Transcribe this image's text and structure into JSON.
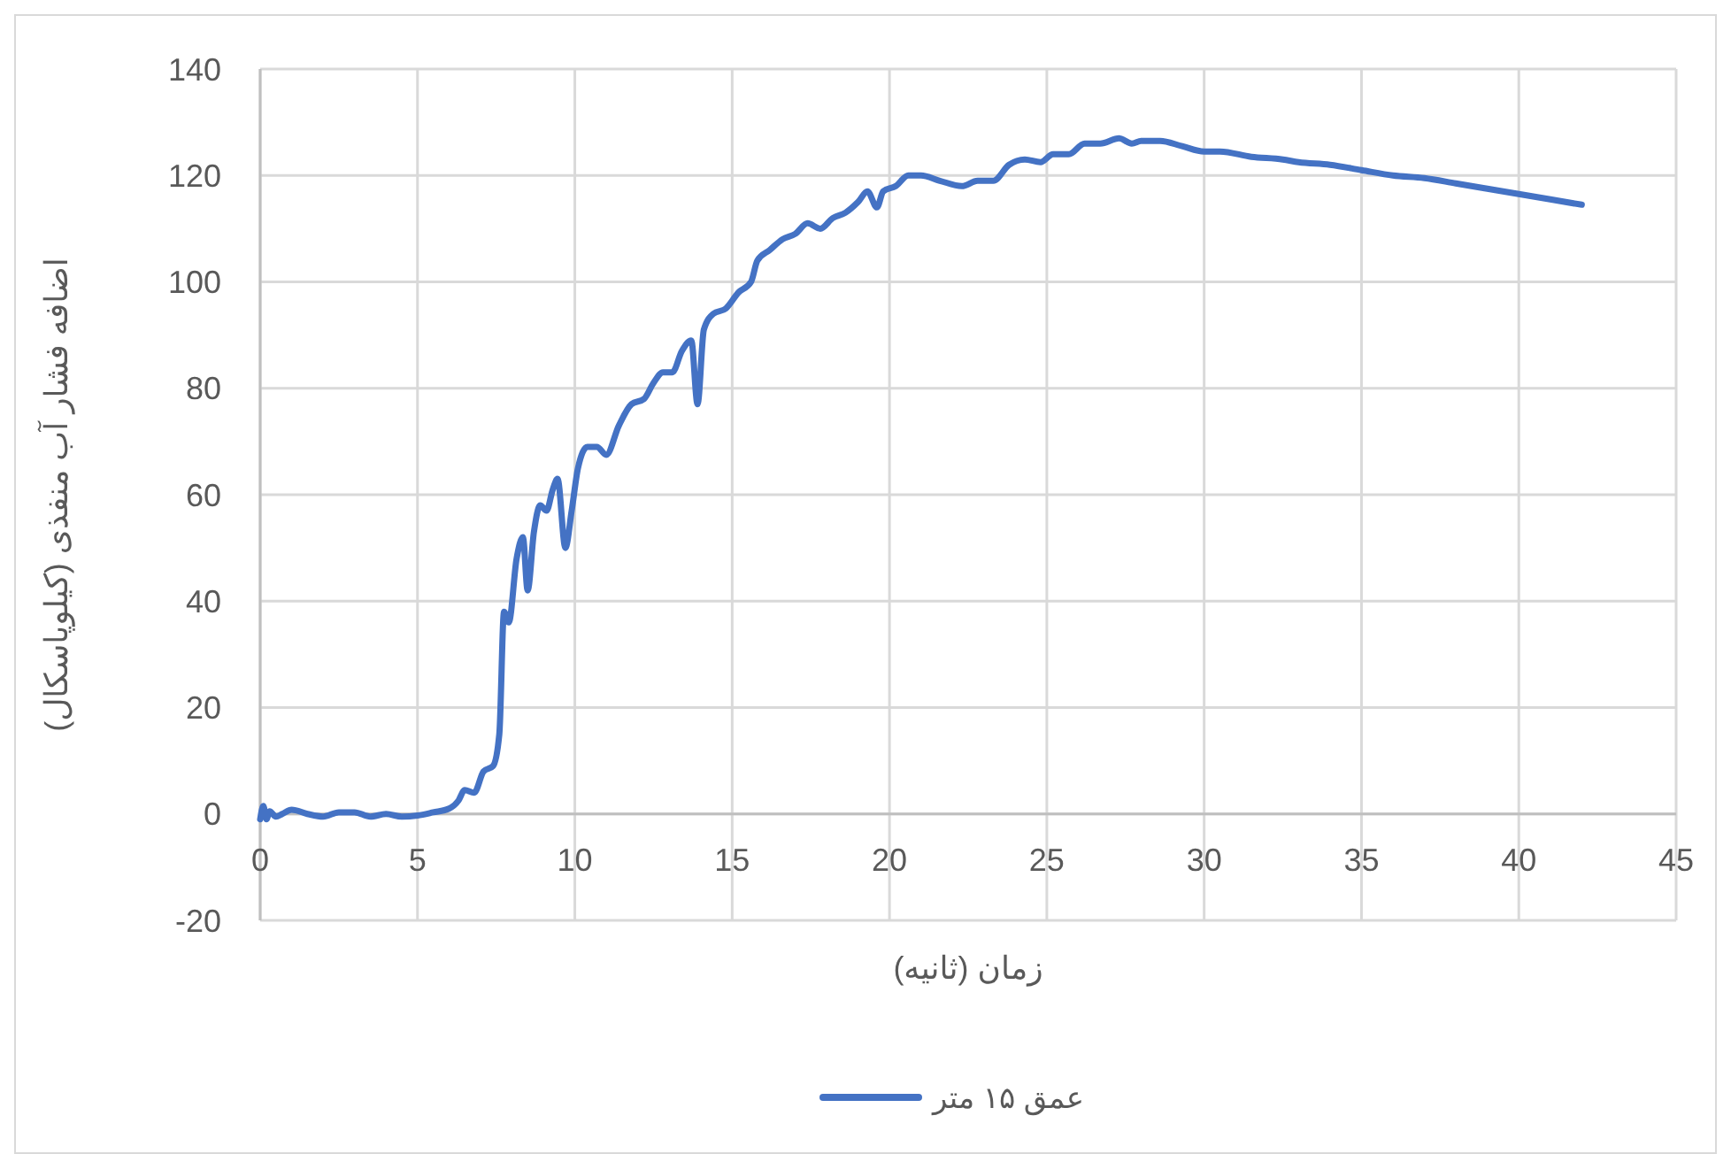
{
  "chart_data": {
    "type": "line",
    "xlabel": "زمان (ثانیه)",
    "ylabel": "اضافه فشار آب منفذی (کیلوپاسکال)",
    "xlim": [
      0,
      45
    ],
    "xticks": [
      0,
      5,
      10,
      15,
      20,
      25,
      30,
      35,
      40,
      45
    ],
    "ylim": [
      -20,
      140
    ],
    "yticks": [
      -20,
      0,
      20,
      40,
      60,
      80,
      100,
      120,
      140
    ],
    "grid": true,
    "legend": "bottom",
    "marker": "none",
    "line_style": "solid",
    "series": [
      {
        "name": "عمق ۱۵ متر",
        "color": "#4472c4",
        "x": [
          0,
          0.1,
          0.2,
          0.3,
          0.5,
          0.7,
          1,
          1.5,
          2,
          2.5,
          3,
          3.5,
          4,
          4.5,
          5,
          5.5,
          6,
          6.3,
          6.5,
          6.8,
          7.1,
          7.4,
          7.6,
          7.75,
          7.9,
          8.15,
          8.35,
          8.5,
          8.7,
          8.9,
          9.1,
          9.3,
          9.45,
          9.7,
          9.9,
          10.1,
          10.4,
          10.7,
          11,
          11.4,
          11.8,
          12.2,
          12.5,
          12.8,
          13.1,
          13.4,
          13.7,
          13.9,
          14.1,
          14.4,
          14.8,
          15.2,
          15.6,
          15.8,
          16.2,
          16.6,
          17,
          17.4,
          17.8,
          18.2,
          18.6,
          19,
          19.3,
          19.6,
          19.8,
          20.2,
          20.6,
          21,
          21.6,
          22.3,
          22.8,
          23.3,
          23.8,
          24.3,
          24.8,
          25.2,
          25.7,
          26.2,
          26.7,
          27.3,
          27.7,
          28,
          28.6,
          29.3,
          30,
          30.5,
          31.5,
          32.5,
          33,
          34,
          35,
          36,
          37,
          38,
          39,
          40,
          41,
          42
        ],
        "values": [
          -1,
          1.5,
          -1,
          0.5,
          -0.5,
          0,
          0.8,
          0,
          -0.5,
          0.3,
          0.3,
          -0.5,
          0,
          -0.5,
          -0.3,
          0.3,
          1,
          2.5,
          4.5,
          4,
          8,
          9,
          15,
          38,
          36,
          48,
          52,
          42,
          53,
          58,
          57,
          61,
          63,
          50,
          57,
          65,
          69,
          69,
          67.5,
          73,
          77,
          78,
          81,
          83,
          83,
          87,
          89,
          77,
          91,
          94,
          95,
          98,
          100,
          104,
          106,
          108,
          109,
          111,
          110,
          112,
          113,
          115,
          117,
          114,
          117,
          118,
          120,
          120,
          119,
          118,
          119,
          119,
          122,
          123,
          122.5,
          124,
          124,
          126,
          126,
          127,
          126,
          126.5,
          126.5,
          125.5,
          124.5,
          124.5,
          123.5,
          123,
          122.5,
          122,
          121,
          120,
          119.5,
          118.5,
          117.5,
          116.5,
          115.5,
          114.5
        ]
      }
    ]
  }
}
